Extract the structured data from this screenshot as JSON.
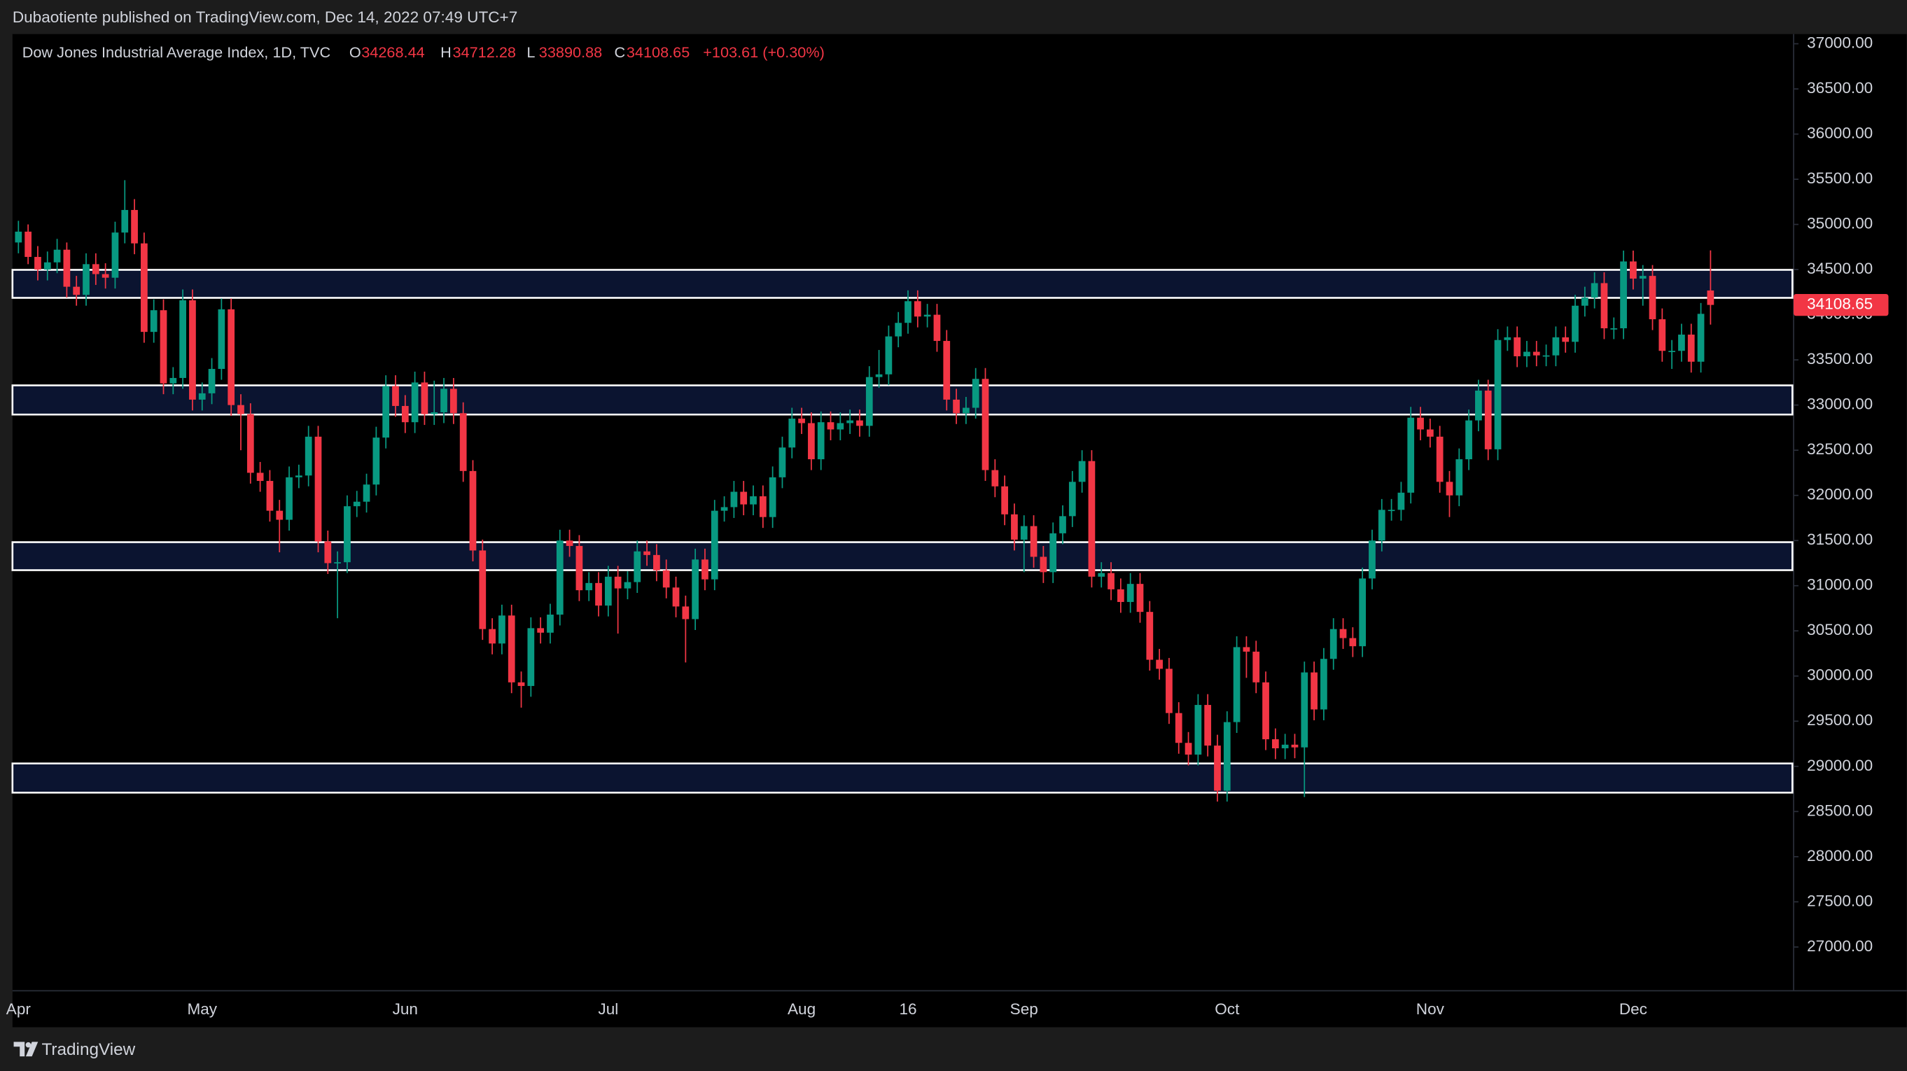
{
  "caption": "Dubaotiente published on TradingView.com, Dec 14, 2022 07:49 UTC+7",
  "footer": {
    "brand": "TradingView"
  },
  "chart_data": {
    "type": "candlestick",
    "title": "Dow Jones Industrial Average Index, 1D, TVC",
    "ohlc_labels": [
      "O",
      "H",
      "L",
      "C"
    ],
    "change": "+103.61 (+0.30%)",
    "up_color": "#089981",
    "down_color": "#f23645",
    "zone_color": "#0b1430",
    "zones": [
      {
        "top": 34497,
        "bottom": 34187
      },
      {
        "top": 33218,
        "bottom": 32895
      },
      {
        "top": 31482,
        "bottom": 31172
      },
      {
        "top": 29032,
        "bottom": 28709
      }
    ],
    "ylim": [
      26300,
      37450
    ],
    "yticks": [
      {
        "value": 27000,
        "label": "27000.00"
      },
      {
        "value": 27500,
        "label": "27500.00"
      },
      {
        "value": 28000,
        "label": "28000.00"
      },
      {
        "value": 28500,
        "label": "28500.00"
      },
      {
        "value": 29000,
        "label": "29000.00"
      },
      {
        "value": 29500,
        "label": "29500.00"
      },
      {
        "value": 30000,
        "label": "30000.00"
      },
      {
        "value": 30500,
        "label": "30500.00"
      },
      {
        "value": 31000,
        "label": "31000.00"
      },
      {
        "value": 31500,
        "label": "31500.00"
      },
      {
        "value": 32000,
        "label": "32000.00"
      },
      {
        "value": 32500,
        "label": "32500.00"
      },
      {
        "value": 33000,
        "label": "33000.00"
      },
      {
        "value": 33500,
        "label": "33500.00"
      },
      {
        "value": 34000,
        "label": "34000.00"
      },
      {
        "value": 34500,
        "label": "34500.00"
      },
      {
        "value": 35000,
        "label": "35000.00"
      },
      {
        "value": 35500,
        "label": "35500.00"
      },
      {
        "value": 36000,
        "label": "36000.00"
      },
      {
        "value": 36500,
        "label": "36500.00"
      },
      {
        "value": 37000,
        "label": "37000.00"
      }
    ],
    "categories": [
      "Apr",
      null,
      null,
      null,
      null,
      null,
      null,
      null,
      null,
      null,
      null,
      null,
      null,
      null,
      null,
      null,
      null,
      null,
      null,
      "May",
      null,
      null,
      null,
      null,
      null,
      null,
      null,
      null,
      null,
      null,
      null,
      null,
      null,
      null,
      null,
      null,
      null,
      null,
      null,
      null,
      "Jun",
      null,
      null,
      null,
      null,
      null,
      null,
      null,
      null,
      null,
      null,
      null,
      null,
      null,
      null,
      null,
      null,
      null,
      null,
      null,
      null,
      "Jul",
      null,
      null,
      null,
      null,
      null,
      null,
      null,
      null,
      null,
      null,
      null,
      null,
      null,
      null,
      null,
      null,
      null,
      null,
      null,
      "Aug",
      null,
      null,
      null,
      null,
      null,
      null,
      null,
      null,
      null,
      null,
      "16",
      null,
      null,
      null,
      null,
      null,
      null,
      null,
      null,
      null,
      null,
      null,
      "Sep",
      null,
      null,
      null,
      null,
      null,
      null,
      null,
      null,
      null,
      null,
      null,
      null,
      null,
      null,
      null,
      null,
      null,
      null,
      null,
      null,
      "Oct",
      null,
      null,
      null,
      null,
      null,
      null,
      null,
      null,
      null,
      null,
      null,
      null,
      null,
      null,
      null,
      null,
      null,
      null,
      null,
      null,
      "Nov",
      null,
      null,
      null,
      null,
      null,
      null,
      null,
      null,
      null,
      null,
      null,
      null,
      null,
      null,
      null,
      null,
      null,
      null,
      null,
      null,
      "Dec",
      null,
      null,
      null,
      null,
      null,
      null,
      null,
      null
    ],
    "open": [
      34800,
      34920,
      34640,
      34500,
      34580,
      34720,
      34310,
      34220,
      34560,
      34450,
      34410,
      34910,
      35160,
      34790,
      33810,
      34050,
      33240,
      33300,
      34160,
      33060,
      33130,
      33400,
      34060,
      33000,
      32900,
      32250,
      32160,
      31830,
      31730,
      32200,
      32220,
      32650,
      31490,
      31250,
      31260,
      31880,
      31930,
      32120,
      32640,
      33210,
      32990,
      32810,
      33250,
      32900,
      32920,
      33180,
      32910,
      32270,
      31390,
      30520,
      30360,
      30670,
      29930,
      29890,
      30530,
      30480,
      30680,
      31500,
      31440,
      30950,
      31030,
      30780,
      31100,
      30970,
      31040,
      31380,
      31340,
      31170,
      30980,
      30770,
      30630,
      31290,
      31070,
      31830,
      31870,
      32040,
      31900,
      31990,
      31760,
      32200,
      32530,
      32850,
      32800,
      32400,
      32810,
      32730,
      32800,
      32830,
      32770,
      33310,
      33340,
      33760,
      33910,
      34150,
      33980,
      34000,
      33710,
      33060,
      32910,
      32970,
      33290,
      32280,
      32100,
      31790,
      31510,
      31660,
      31320,
      31150,
      31580,
      31770,
      32150,
      32380,
      31100,
      31140,
      30960,
      30820,
      31020,
      30710,
      30180,
      30080,
      29590,
      29260,
      29130,
      29680,
      29230,
      28730,
      29490,
      30320,
      30270,
      29930,
      29300,
      29200,
      29240,
      29210,
      30040,
      29630,
      30190,
      30520,
      30420,
      30330,
      31080,
      31500,
      31840,
      31840,
      32030,
      32860,
      32730,
      32650,
      32150,
      32000,
      32400,
      32830,
      33160,
      32510,
      33720,
      33750,
      33540,
      33590,
      33550,
      33550,
      33750,
      33700,
      34100,
      34190,
      34350,
      33850,
      33850,
      34590,
      34400,
      34430,
      33950,
      33600,
      33600,
      33780,
      33480,
      34268.44
    ],
    "high": [
      35040,
      35000,
      34760,
      34700,
      34840,
      34800,
      34430,
      34680,
      34680,
      34570,
      35030,
      35490,
      35280,
      34910,
      34170,
      34170,
      33420,
      34280,
      34280,
      33250,
      33520,
      34180,
      34180,
      33120,
      33020,
      32370,
      32280,
      31950,
      32320,
      32340,
      32770,
      32770,
      31610,
      31380,
      32000,
      32050,
      32240,
      32760,
      33330,
      33330,
      33110,
      33370,
      33370,
      33270,
      33300,
      33300,
      33030,
      32390,
      31510,
      30640,
      30790,
      30790,
      30050,
      30650,
      30650,
      30800,
      31620,
      31620,
      31560,
      31150,
      31150,
      31220,
      31220,
      31160,
      31500,
      31500,
      31460,
      31290,
      31100,
      30890,
      31410,
      31410,
      31950,
      31990,
      32160,
      32160,
      32110,
      32110,
      32320,
      32650,
      32970,
      32970,
      32920,
      32930,
      32930,
      32920,
      32950,
      32950,
      33430,
      33610,
      33880,
      34030,
      34270,
      34270,
      34120,
      34120,
      33830,
      33180,
      33090,
      33410,
      33410,
      32400,
      32220,
      31910,
      31780,
      31780,
      31440,
      31700,
      31890,
      32270,
      32500,
      32500,
      31260,
      31260,
      31080,
      31140,
      31140,
      30830,
      30300,
      30200,
      29710,
      29380,
      29800,
      29800,
      29350,
      29610,
      30440,
      30440,
      30390,
      30050,
      29420,
      29360,
      29360,
      30160,
      30160,
      30310,
      30640,
      30640,
      30540,
      31200,
      31620,
      31960,
      31960,
      32150,
      32980,
      32980,
      32850,
      32770,
      32270,
      32520,
      32950,
      33280,
      33280,
      33840,
      33870,
      33870,
      33710,
      33710,
      33670,
      33870,
      33870,
      34220,
      34310,
      34470,
      34470,
      33970,
      34710,
      34710,
      34550,
      34550,
      34070,
      33720,
      33900,
      33900,
      34130,
      34712.28
    ],
    "low": [
      34680,
      34560,
      34380,
      34380,
      34460,
      34190,
      34100,
      34100,
      34330,
      34290,
      34290,
      34790,
      34670,
      33690,
      33690,
      33120,
      33120,
      33180,
      32940,
      32940,
      33010,
      33280,
      32880,
      32500,
      32130,
      32040,
      31710,
      31370,
      31610,
      32080,
      32100,
      31370,
      31130,
      30640,
      31140,
      31760,
      31810,
      32000,
      32520,
      32870,
      32690,
      32690,
      32780,
      32780,
      32800,
      32790,
      32150,
      31270,
      30400,
      30240,
      30240,
      29810,
      29650,
      29770,
      30360,
      30360,
      30560,
      31320,
      30830,
      30830,
      30660,
      30660,
      30470,
      30850,
      30920,
      31220,
      31050,
      30860,
      30650,
      30150,
      30510,
      30950,
      30950,
      31710,
      31750,
      31780,
      31780,
      31640,
      31640,
      32080,
      32410,
      32680,
      32280,
      32280,
      32610,
      32610,
      32680,
      32650,
      32650,
      33190,
      33220,
      33640,
      33790,
      33860,
      33860,
      33590,
      32940,
      32790,
      32790,
      32850,
      32160,
      31980,
      31670,
      31390,
      31150,
      31200,
      31030,
      31030,
      31460,
      31650,
      32030,
      30980,
      30980,
      30840,
      30700,
      30700,
      30590,
      30060,
      29960,
      29470,
      29140,
      29010,
      29010,
      29110,
      28610,
      28610,
      29370,
      29980,
      29810,
      29180,
      29080,
      29080,
      29090,
      28660,
      29510,
      29510,
      30070,
      30300,
      30210,
      30210,
      30960,
      31380,
      31720,
      31720,
      31910,
      32610,
      32530,
      32030,
      31760,
      31880,
      32280,
      32710,
      32390,
      32390,
      33600,
      33420,
      33420,
      33430,
      33430,
      33430,
      33580,
      33580,
      33980,
      34070,
      33730,
      33730,
      33730,
      34280,
      34100,
      33830,
      33480,
      33400,
      33480,
      33360,
      33360,
      33890.88
    ],
    "close": [
      34920,
      34640,
      34500,
      34580,
      34720,
      34310,
      34220,
      34560,
      34450,
      34410,
      34910,
      35160,
      34790,
      33810,
      34050,
      33240,
      33300,
      34160,
      33060,
      33130,
      33400,
      34060,
      33000,
      32900,
      32250,
      32160,
      31830,
      31730,
      32200,
      32220,
      32650,
      31490,
      31250,
      31260,
      31880,
      31930,
      32120,
      32640,
      33210,
      32990,
      32810,
      33250,
      32900,
      32920,
      33180,
      32910,
      32270,
      31390,
      30520,
      30360,
      30670,
      29930,
      29890,
      30530,
      30480,
      30680,
      31500,
      31440,
      30950,
      31030,
      30780,
      31100,
      30970,
      31040,
      31380,
      31340,
      31170,
      30980,
      30770,
      30630,
      31290,
      31070,
      31830,
      31870,
      32040,
      31900,
      31990,
      31760,
      32200,
      32530,
      32850,
      32800,
      32400,
      32810,
      32730,
      32800,
      32830,
      32770,
      33310,
      33340,
      33760,
      33910,
      34150,
      33980,
      34000,
      33710,
      33060,
      32910,
      32970,
      33290,
      32280,
      32100,
      31790,
      31510,
      31660,
      31320,
      31150,
      31580,
      31770,
      32150,
      32380,
      31100,
      31140,
      30960,
      30820,
      31020,
      30710,
      30180,
      30080,
      29590,
      29260,
      29130,
      29680,
      29230,
      28730,
      29490,
      30320,
      30270,
      29930,
      29300,
      29200,
      29240,
      29210,
      30040,
      29630,
      30190,
      30520,
      30420,
      30330,
      31080,
      31500,
      31840,
      31840,
      32030,
      32860,
      32730,
      32650,
      32150,
      32000,
      32400,
      32830,
      33160,
      32510,
      33720,
      33750,
      33540,
      33590,
      33550,
      33550,
      33750,
      33700,
      34100,
      34190,
      34350,
      33850,
      33850,
      34590,
      34400,
      34430,
      33950,
      33600,
      33600,
      33780,
      33480,
      34010,
      34108.65
    ]
  }
}
